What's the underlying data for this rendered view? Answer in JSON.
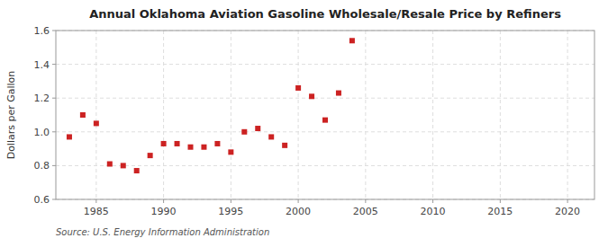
{
  "chart_data": {
    "type": "scatter",
    "title": "Annual Oklahoma Aviation Gasoline Wholesale/Resale Price by Refiners",
    "y_label": "Dollars per Gallon",
    "annotations": [
      "Source: U.S. Energy Information Administration"
    ],
    "x": [
      1983,
      1984,
      1985,
      1986,
      1987,
      1988,
      1989,
      1990,
      1991,
      1992,
      1993,
      1994,
      1995,
      1996,
      1997,
      1998,
      1999,
      2000,
      2001,
      2002,
      2003,
      2004
    ],
    "values": [
      0.97,
      1.1,
      1.05,
      0.81,
      0.8,
      0.77,
      0.86,
      0.93,
      0.93,
      0.91,
      0.91,
      0.93,
      0.88,
      1.0,
      1.02,
      0.97,
      0.92,
      1.26,
      1.21,
      1.07,
      1.23,
      1.54
    ],
    "color": "#cc2222",
    "marker": "square",
    "xlim": [
      1982,
      2022
    ],
    "ylim": [
      0.6,
      1.6
    ],
    "xticks": [
      1985,
      1990,
      1995,
      2000,
      2005,
      2010,
      2015,
      2020
    ],
    "yticks": [
      0.6,
      0.8,
      {
        "value": 1.0,
        "label": "1.0"
      },
      1.2,
      1.4,
      1.6
    ],
    "grid": true
  }
}
